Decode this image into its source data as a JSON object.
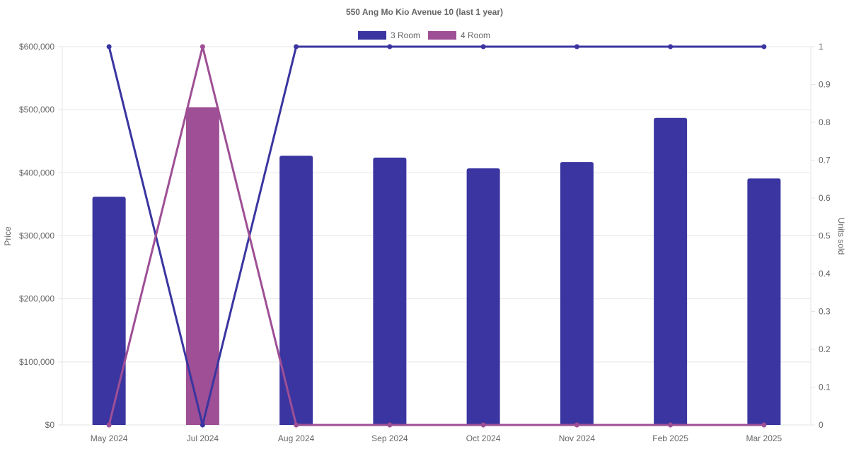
{
  "chart_data": {
    "type": "bar",
    "title": "550 Ang Mo Kio Avenue 10 (last 1 year)",
    "categories": [
      "May 2024",
      "Jul 2024",
      "Aug 2024",
      "Sep 2024",
      "Oct 2024",
      "Nov 2024",
      "Feb 2025",
      "Mar 2025"
    ],
    "ylabel": "Price",
    "y2label": "Units sold",
    "ylim": [
      0,
      600000
    ],
    "y2lim": [
      0,
      1
    ],
    "yticks": [
      "$0",
      "$100,000",
      "$200,000",
      "$300,000",
      "$400,000",
      "$500,000",
      "$600,000"
    ],
    "y2ticks": [
      "0",
      "0.1",
      "0.2",
      "0.3",
      "0.4",
      "0.5",
      "0.6",
      "0.7",
      "0.8",
      "0.9",
      "1"
    ],
    "legend": {
      "position": "top",
      "entries": [
        "3 Room",
        "4 Room"
      ]
    },
    "grid": true,
    "series": [
      {
        "name": "3 Room",
        "color": "#3a35a0",
        "prices": [
          362000,
          null,
          427000,
          424000,
          407000,
          417000,
          487000,
          391000
        ],
        "units_sold": [
          1,
          0,
          1,
          1,
          1,
          1,
          1,
          1
        ]
      },
      {
        "name": "4 Room",
        "color": "#9e4f95",
        "prices": [
          null,
          504000,
          null,
          null,
          null,
          null,
          null,
          null
        ],
        "units_sold": [
          0,
          1,
          0,
          0,
          0,
          0,
          0,
          0
        ]
      }
    ]
  }
}
